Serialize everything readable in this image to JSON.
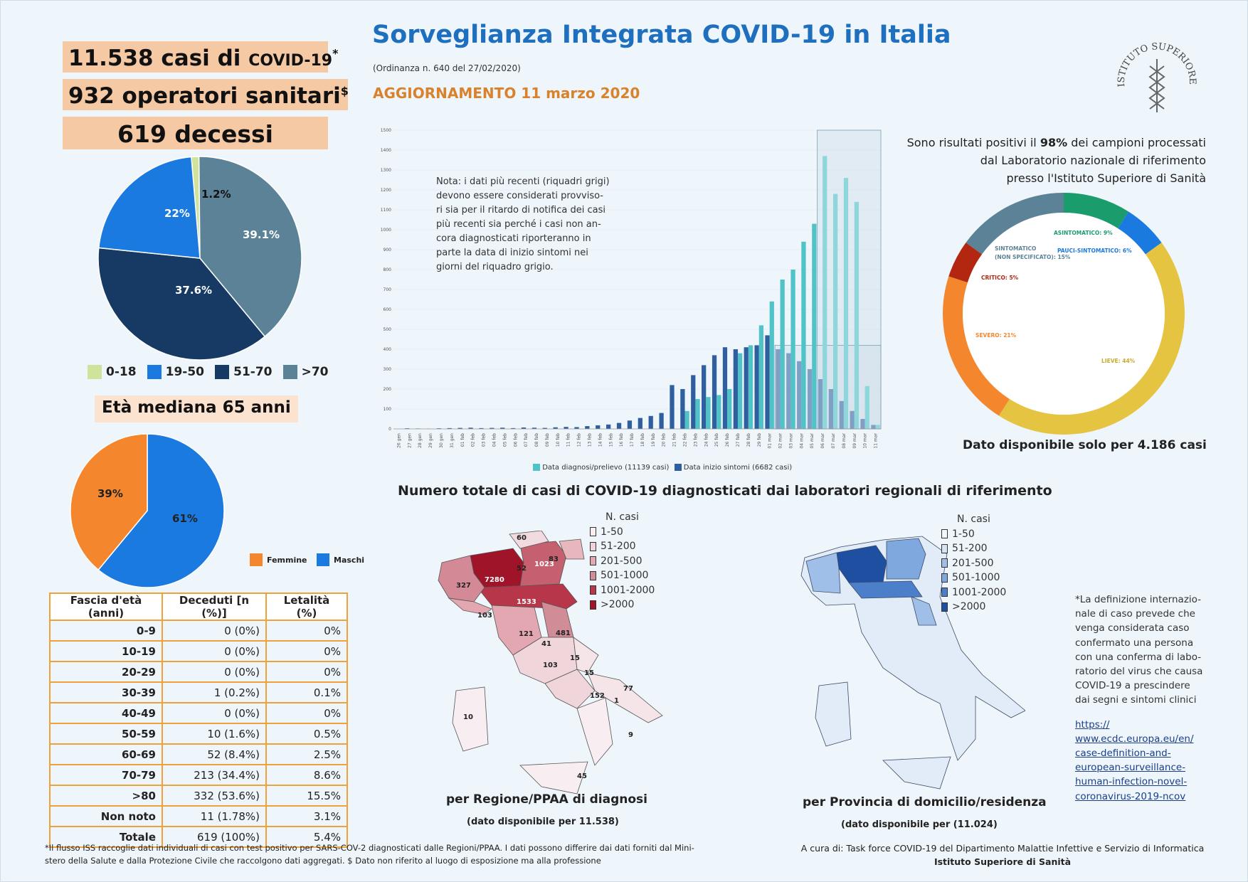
{
  "stats": {
    "cases": "11.538 casi di",
    "cases_small": "COVID-19",
    "cases_mark": "*",
    "operators": "932 operatori sanitari",
    "operators_mark": "$",
    "deaths": "619 decessi"
  },
  "header": {
    "title": "Sorveglianza Integrata COVID-19 in Italia",
    "ordinance": "(Ordinanza n. 640 del 27/02/2020)",
    "update": "AGGIORNAMENTO 11 marzo 2020",
    "logo_text": "ISTITUTO SUPERIORE DI SANITÀ"
  },
  "colors": {
    "accent": "#1f6fbf",
    "orange_title": "#d9822b",
    "teal": "#4fc3c8",
    "darkblue": "#2f5f9e"
  },
  "age_pie": {
    "labels": [
      "1.2%",
      "22%",
      "37.6%",
      "39.1%"
    ],
    "legend": [
      "0-18",
      "19-50",
      "51-70",
      ">70"
    ],
    "median": "Età mediana 65 anni"
  },
  "sex_pie": {
    "labels": [
      "39%",
      "61%"
    ],
    "legend": [
      "Femmine",
      "Maschi"
    ]
  },
  "table": {
    "headers": [
      "Fascia d'età (anni)",
      "Deceduti [n (%)]",
      "Letalità (%)"
    ],
    "rows": [
      [
        "0-9",
        "0 (0%)",
        "0%"
      ],
      [
        "10-19",
        "0 (0%)",
        "0%"
      ],
      [
        "20-29",
        "0 (0%)",
        "0%"
      ],
      [
        "30-39",
        "1 (0.2%)",
        "0.1%"
      ],
      [
        "40-49",
        "0 (0%)",
        "0%"
      ],
      [
        "50-59",
        "10 (1.6%)",
        "0.5%"
      ],
      [
        "60-69",
        "52 (8.4%)",
        "2.5%"
      ],
      [
        "70-79",
        "213 (34.4%)",
        "8.6%"
      ],
      [
        ">80",
        "332 (53.6%)",
        "15.5%"
      ],
      [
        "Non noto",
        "11 (1.78%)",
        "3.1%"
      ],
      [
        "Totale",
        "619 (100%)",
        "5.4%"
      ]
    ]
  },
  "bar_chart": {
    "note": [
      "Nota: i dati più recenti (riquadri grigi)",
      "devono essere considerati provviso-",
      "ri sia per il ritardo di notifica dei casi",
      "più recenti sia perché i casi non an-",
      "cora diagnosticati riporteranno in",
      "parte la data di inizio sintomi nei",
      "giorni del riquadro grigio."
    ],
    "legend": [
      "Data diagnosi/prelievo (11139 casi)",
      "Data inizio sintomi (6682 casi)"
    ]
  },
  "donut": {
    "heading": [
      "Sono risultati positivi il ",
      "98%",
      " dei campioni processati",
      "dal Laboratorio nazionale di riferimento",
      "presso l'Istituto Superiore di Sanità"
    ],
    "labels": {
      "asintomatico": "ASINTOMATICO: 9%",
      "pauci": "PAUCI-SINTOMATICO: 6%",
      "sintomatico1": "SINTOMATICO",
      "sintomatico2": "(NON SPECIFICATO): 15%",
      "critico": "CRITICO: 5%",
      "severo": "SEVERO: 21%",
      "lieve": "LIEVE: 44%"
    },
    "footer": "Dato disponibile solo per 4.186 casi"
  },
  "maps": {
    "title": "Numero totale di casi di COVID-19 diagnosticati dai laboratori regionali di riferimento",
    "legend_title": "N. casi",
    "legend": [
      "1-50",
      "51-200",
      "201-500",
      "501-1000",
      "1001-2000",
      ">2000"
    ],
    "region_labels": [
      "7280",
      "1533",
      "1023",
      "327",
      "60",
      "52",
      "83",
      "103",
      "121",
      "481",
      "41",
      "15",
      "103",
      "15",
      "77",
      "152",
      "1",
      "10",
      "9",
      "45"
    ],
    "left_caption": "per Regione/PPAA di diagnosi",
    "left_sub": "(dato disponibile per 11.538)",
    "right_caption": "per Provincia di domicilio/residenza",
    "right_sub": "(dato disponibile per (11.024)"
  },
  "side_note": {
    "text": [
      "*La definizione internazio-",
      "nale di caso prevede che",
      "venga considerata caso",
      "confermato una persona",
      "con una conferma di labo-",
      "ratorio del virus che causa",
      "COVID-19 a prescindere",
      "dai segni e sintomi clinici"
    ],
    "link": [
      "https://",
      "www.ecdc.europa.eu/en/",
      "case-definition-and-",
      "european-surveillance-",
      "human-infection-novel-",
      "coronavirus-2019-ncov"
    ]
  },
  "footer": {
    "left1": "*Il flusso ISS raccoglie dati individuali di casi con test positivo per SARS-COV-2 diagnosticati dalle Regioni/PPAA. I dati possono differire dai dati forniti dal Mini-",
    "left2": "stero della Salute e dalla Protezione Civile che raccolgono dati aggregati. $ Dato non riferito al luogo di esposizione ma alla professione",
    "right1": "A cura di: Task force COVID-19 del Dipartimento Malattie Infettive e Servizio di Informatica",
    "right2": "Istituto Superiore di Sanità"
  },
  "chart_data": [
    {
      "type": "bar",
      "title": "",
      "xlabel": "",
      "ylabel": "",
      "ylim": [
        0,
        1500
      ],
      "categories": [
        "26 gen",
        "27 gen",
        "28 gen",
        "29 gen",
        "30 gen",
        "31 gen",
        "01 feb",
        "02 feb",
        "03 feb",
        "04 feb",
        "05 feb",
        "06 feb",
        "07 feb",
        "08 feb",
        "09 feb",
        "10 feb",
        "11 feb",
        "12 feb",
        "13 feb",
        "14 feb",
        "15 feb",
        "16 feb",
        "17 feb",
        "18 feb",
        "19 feb",
        "20 feb",
        "21 feb",
        "22 feb",
        "23 feb",
        "24 feb",
        "25 feb",
        "26 feb",
        "27 feb",
        "28 feb",
        "29 feb",
        "01 mar",
        "02 mar",
        "03 mar",
        "04 mar",
        "05 mar",
        "06 mar",
        "07 mar",
        "08 mar",
        "09 mar",
        "10 mar",
        "11 mar"
      ],
      "series": [
        {
          "name": "Data inizio sintomi (6682 casi)",
          "values": [
            0,
            3,
            2,
            1,
            3,
            4,
            5,
            6,
            4,
            5,
            6,
            4,
            7,
            6,
            5,
            8,
            10,
            9,
            14,
            18,
            22,
            30,
            42,
            55,
            65,
            80,
            220,
            200,
            270,
            320,
            370,
            410,
            400,
            410,
            420,
            470,
            400,
            380,
            340,
            300,
            250,
            200,
            140,
            90,
            50,
            20
          ]
        },
        {
          "name": "Data diagnosi/prelievo (11139 casi)",
          "values": [
            0,
            0,
            0,
            0,
            0,
            0,
            0,
            0,
            0,
            0,
            0,
            0,
            0,
            0,
            0,
            0,
            0,
            0,
            0,
            0,
            0,
            0,
            0,
            0,
            0,
            0,
            0,
            90,
            150,
            160,
            170,
            200,
            380,
            420,
            520,
            640,
            750,
            800,
            940,
            1030,
            1370,
            1180,
            1260,
            1140,
            215,
            20
          ]
        }
      ]
    },
    {
      "type": "pie",
      "title": "",
      "categories": [
        "0-18",
        "19-50",
        "51-70",
        ">70"
      ],
      "values": [
        1.2,
        22,
        37.6,
        39.1
      ]
    },
    {
      "type": "pie",
      "title": "",
      "categories": [
        "Femmine",
        "Maschi"
      ],
      "values": [
        39,
        61
      ]
    },
    {
      "type": "pie",
      "title": "",
      "categories": [
        "ASINTOMATICO",
        "PAUCI-SINTOMATICO",
        "LIEVE",
        "SEVERO",
        "CRITICO",
        "SINTOMATICO (NON SPECIFICATO)"
      ],
      "values": [
        9,
        6,
        44,
        21,
        5,
        15
      ]
    }
  ]
}
